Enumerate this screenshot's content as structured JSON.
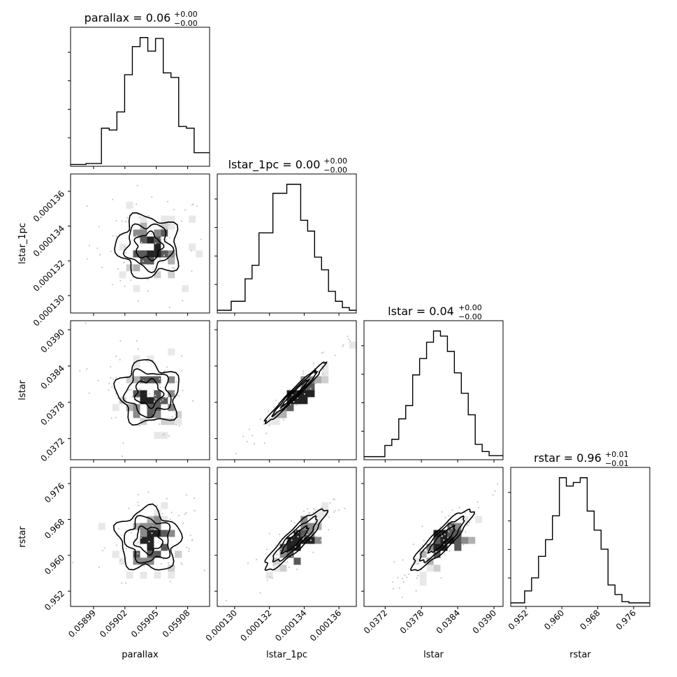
{
  "chart_data": {
    "type": "corner",
    "parameters": [
      "parallax",
      "lstar_1pc",
      "lstar",
      "rstar"
    ],
    "titles": [
      {
        "main": "parallax = 0.06",
        "sup": "+0.00",
        "sub": "−0.00"
      },
      {
        "main": "lstar_1pc = 0.00",
        "sup": "+0.00",
        "sub": "−0.00"
      },
      {
        "main": "lstar = 0.04",
        "sup": "+0.00",
        "sub": "−0.00"
      },
      {
        "main": "rstar = 0.96",
        "sup": "+0.01",
        "sub": "−0.01"
      }
    ],
    "axis_labels": [
      "parallax",
      "lstar_1pc",
      "lstar",
      "rstar"
    ],
    "ranges": [
      [
        0.058968,
        0.059101
      ],
      [
        0.000129,
        0.000137
      ],
      [
        0.03685,
        0.03915
      ],
      [
        0.9486,
        0.9796
      ]
    ],
    "ticks": [
      [
        0.05899,
        0.05902,
        0.05905,
        0.05908
      ],
      [
        0.00013,
        0.000132,
        0.000134,
        0.000136
      ],
      [
        0.0372,
        0.0378,
        0.0384,
        0.039
      ],
      [
        0.952,
        0.96,
        0.968,
        0.976
      ]
    ],
    "tick_labels": [
      [
        "0.05899",
        "0.05902",
        "0.05905",
        "0.05908"
      ],
      [
        "0.000130",
        "0.000132",
        "0.000134",
        "0.000136"
      ],
      [
        "0.0372",
        "0.0378",
        "0.0384",
        "0.0390"
      ],
      [
        "0.952",
        "0.960",
        "0.968",
        "0.976"
      ]
    ],
    "histograms": [
      [
        2,
        2,
        3,
        3,
        42,
        40,
        60,
        101,
        132,
        142,
        127,
        141,
        103,
        98,
        44,
        42,
        15,
        15
      ],
      [
        3,
        3,
        13,
        13,
        38,
        53,
        89,
        89,
        133,
        133,
        143,
        143,
        103,
        91,
        62,
        48,
        24,
        13,
        6,
        3
      ],
      [
        3,
        3,
        3,
        14,
        20,
        40,
        53,
        83,
        99,
        115,
        126,
        121,
        106,
        85,
        65,
        44,
        15,
        8,
        4,
        4
      ],
      [
        3,
        3,
        13,
        24,
        42,
        56,
        76,
        108,
        101,
        104,
        108,
        80,
        64,
        48,
        18,
        10,
        4,
        3,
        3,
        3
      ]
    ],
    "grid": false
  }
}
